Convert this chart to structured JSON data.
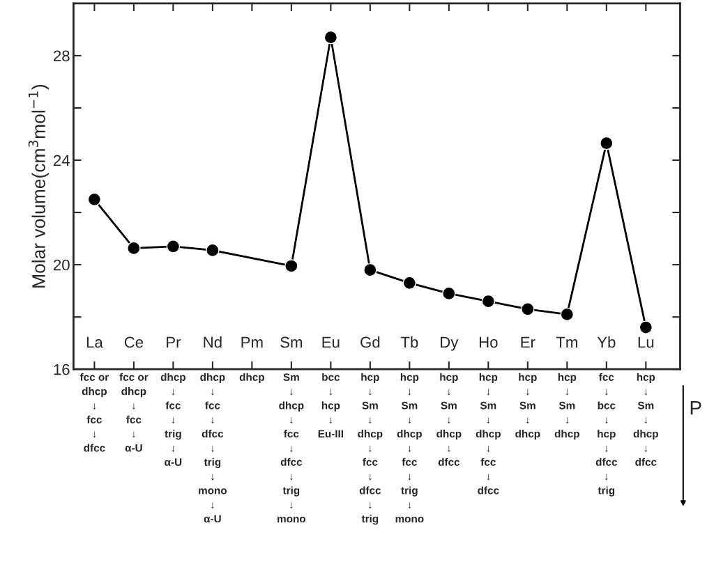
{
  "chart_data": {
    "type": "line",
    "categories": [
      "La",
      "Ce",
      "Pr",
      "Nd",
      "Pm",
      "Sm",
      "Eu",
      "Gd",
      "Tb",
      "Dy",
      "Ho",
      "Er",
      "Tm",
      "Yb",
      "Lu"
    ],
    "series": [
      {
        "color": "#000000",
        "values": [
          22.5,
          20.63,
          20.7,
          20.55,
          null,
          19.95,
          28.7,
          19.8,
          19.3,
          18.9,
          18.6,
          18.3,
          18.1,
          24.65,
          17.6
        ]
      }
    ],
    "ylabel": "Molar volume(cm$^{3}$mol$^{−1}$)",
    "ylim": [
      16,
      30
    ],
    "yticks": [
      16,
      {
        "value": 18,
        "label": null
      },
      20,
      {
        "value": 22,
        "label": null
      },
      24,
      {
        "value": 26,
        "label": null
      },
      28
    ],
    "marker": "circle",
    "line_style": "solid",
    "grid": false,
    "annotations": [
      "fcc or\ndhcp\n↓\nfcc\n↓\ndfcc",
      "fcc or\ndhcp\n↓\nfcc\n↓\nα-U",
      "dhcp\n↓\nfcc\n↓\ntrig\n↓\nα-U",
      "dhcp\n↓\nfcc\n↓\ndfcc\n↓\ntrig\n↓\nmono\n↓\nα-U",
      "dhcp",
      "Sm\n↓\ndhcp\n↓\nfcc\n↓\ndfcc\n↓\ntrig\n↓\nmono",
      "bcc\n↓\nhcp\n↓\nEu-III",
      "hcp\n↓\nSm\n↓\ndhcp\n↓\nfcc\n↓\ndfcc\n↓\ntrig",
      "hcp\n↓\nSm\n↓\ndhcp\n↓\nfcc\n↓\ntrig\n↓\nmono",
      "hcp\n↓\nSm\n↓\ndhcp\n↓\ndfcc",
      "hcp\n↓\nSm\n↓\ndhcp\n↓\nfcc\n↓\ndfcc",
      "hcp\n↓\nSm\n↓\ndhcp",
      "hcp\n↓\nSm\n↓\ndhcp",
      "fcc\n↓\nbcc\n↓\nhcp\n↓\ndfcc\n↓\ntrig",
      "hcp\n↓\nSm\n↓\ndhcp\n↓\ndfcc",
      "P"
    ]
  }
}
